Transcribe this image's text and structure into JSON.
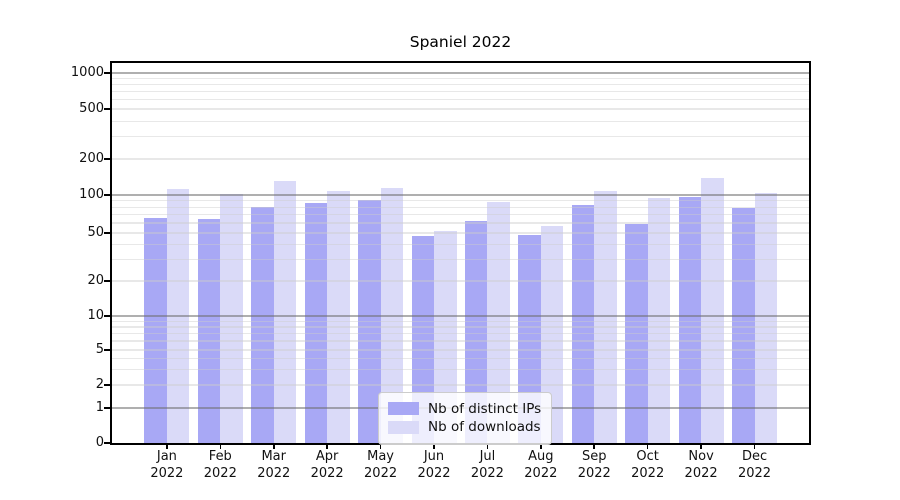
{
  "title": "Spaniel 2022",
  "chart_data": {
    "type": "bar",
    "title": "Spaniel 2022",
    "xlabel": "",
    "ylabel": "",
    "yscale": "symlog",
    "grid": "both",
    "legend_position": "lower center",
    "ylim": [
      0,
      1300
    ],
    "yticks": [
      0,
      1,
      2,
      5,
      10,
      20,
      50,
      100,
      200,
      500,
      1000
    ],
    "categories": [
      "Jan 2022",
      "Feb 2022",
      "Mar 2022",
      "Apr 2022",
      "May 2022",
      "Jun 2022",
      "Jul 2022",
      "Aug 2022",
      "Sep 2022",
      "Oct 2022",
      "Nov 2022",
      "Dec 2022"
    ],
    "series": [
      {
        "name": "Nb of distinct IPs",
        "key": "distinct-ips",
        "color": "#a8a8f5",
        "values": [
          66,
          65,
          81,
          87,
          91,
          47,
          62,
          48,
          83,
          59,
          96,
          79
        ]
      },
      {
        "name": "Nb of downloads",
        "key": "downloads",
        "color": "#dadaf8",
        "values": [
          112,
          102,
          130,
          107,
          115,
          52,
          88,
          57,
          108,
          94,
          140,
          104
        ]
      }
    ]
  }
}
